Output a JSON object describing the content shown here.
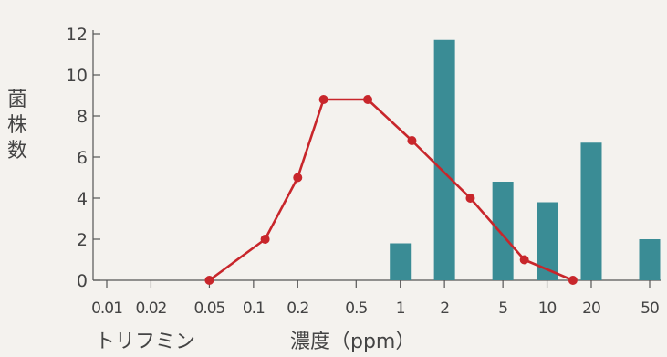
{
  "chart_data": {
    "type": "bar+line",
    "ylabel": "菌株数",
    "xlabel": "濃度（ppm）",
    "compound_label": "トリフミン",
    "x_tick_labels": [
      "0.01",
      "0.02",
      "0.05",
      "0.1",
      "0.2",
      "0.5",
      "1",
      "2",
      "5",
      "10",
      "20",
      "50"
    ],
    "y_ticks": [
      "0",
      "2",
      "4",
      "6",
      "8",
      "10",
      "12"
    ],
    "ylim": [
      0,
      12
    ],
    "bar_series": {
      "color": "#3a8c95",
      "bars": [
        {
          "x": "1",
          "value": 1.8
        },
        {
          "x": "2",
          "value": 11.7
        },
        {
          "x": "5",
          "value": 4.8
        },
        {
          "x": "10",
          "value": 3.8
        },
        {
          "x": "20",
          "value": 6.7
        },
        {
          "x": "50",
          "value": 2.0
        }
      ]
    },
    "line_series": {
      "color": "#c8262b",
      "points": [
        {
          "x": 0.05,
          "y": 0
        },
        {
          "x": 0.12,
          "y": 2
        },
        {
          "x": 0.2,
          "y": 5
        },
        {
          "x": 0.3,
          "y": 8.8
        },
        {
          "x": 0.6,
          "y": 8.8
        },
        {
          "x": 1.2,
          "y": 6.8
        },
        {
          "x": 3,
          "y": 4
        },
        {
          "x": 7,
          "y": 1
        },
        {
          "x": 15,
          "y": 0
        }
      ]
    }
  }
}
